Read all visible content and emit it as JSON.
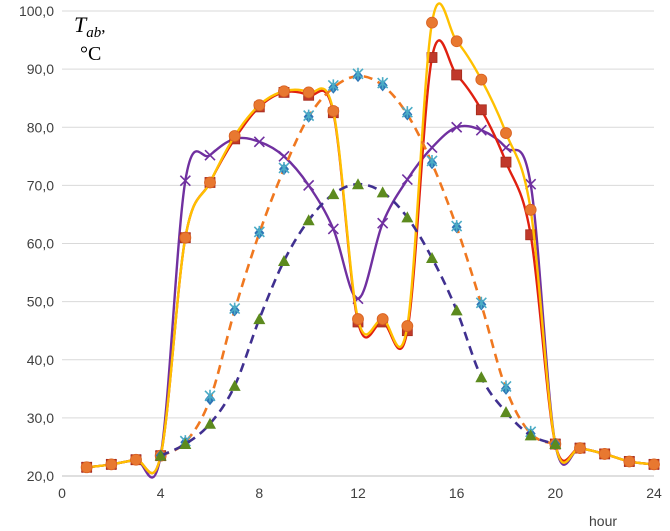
{
  "chart_data": {
    "type": "line",
    "ylabel_main": "T",
    "ylabel_sub": "ab",
    "ylabel_sep": ",",
    "ylabel_unit": "°C",
    "xlabel": "hour",
    "xlim": [
      0,
      24
    ],
    "ylim": [
      20,
      100
    ],
    "xticks": [
      "0",
      "4",
      "8",
      "12",
      "16",
      "20",
      "24"
    ],
    "yticks": [
      "20,0",
      "30,0",
      "40,0",
      "50,0",
      "60,0",
      "70,0",
      "80,0",
      "90,0",
      "100,0"
    ],
    "grid": "horizontal",
    "series": [
      {
        "color": "#7030a0",
        "dash": false,
        "marker": "x",
        "x": [
          1,
          2,
          3,
          4,
          5,
          6,
          7,
          8,
          9,
          10,
          11,
          12,
          13,
          14,
          15,
          16,
          17,
          18,
          19,
          20,
          21,
          22,
          23,
          24
        ],
        "y": [
          21.5,
          22.0,
          22.8,
          23.5,
          70.8,
          75.2,
          78.0,
          77.5,
          75.0,
          70.0,
          62.5,
          50.5,
          63.5,
          71.0,
          76.5,
          80.0,
          79.5,
          76.5,
          70.2,
          25.5,
          24.8,
          23.8,
          22.5,
          22.0
        ]
      },
      {
        "color": "#e02010",
        "dash": false,
        "marker": "square",
        "x": [
          1,
          2,
          3,
          4,
          5,
          6,
          7,
          8,
          9,
          10,
          11,
          12,
          13,
          14,
          15,
          16,
          17,
          18,
          19,
          20,
          21,
          22,
          23,
          24
        ],
        "y": [
          21.5,
          22.0,
          22.8,
          23.5,
          61.0,
          70.5,
          78.0,
          83.5,
          86.0,
          85.5,
          82.5,
          46.5,
          46.5,
          45.0,
          92.0,
          89.0,
          83.0,
          74.0,
          61.5,
          25.5,
          24.8,
          23.8,
          22.5,
          22.0
        ]
      },
      {
        "color": "#ffc000",
        "dash": false,
        "marker": "circle",
        "x": [
          1,
          2,
          3,
          4,
          5,
          6,
          7,
          8,
          9,
          10,
          11,
          12,
          13,
          14,
          15,
          16,
          17,
          18,
          19,
          20,
          21,
          22,
          23,
          24
        ],
        "y": [
          21.5,
          22.0,
          22.8,
          23.5,
          61.0,
          70.5,
          78.5,
          83.8,
          86.2,
          86.0,
          82.8,
          47.0,
          47.0,
          45.8,
          98.0,
          94.8,
          88.2,
          79.0,
          65.8,
          25.5,
          24.8,
          23.8,
          22.5,
          22.0
        ]
      },
      {
        "color": "#f07820",
        "dash": true,
        "marker": "diamond",
        "x": [
          4,
          5,
          6,
          7,
          8,
          9,
          10,
          11,
          12,
          13,
          14,
          15,
          16,
          17,
          18,
          19,
          20
        ],
        "y": [
          23.5,
          25.8,
          33.2,
          48.5,
          61.8,
          72.8,
          81.8,
          86.8,
          88.8,
          87.2,
          82.2,
          73.8,
          62.8,
          49.5,
          35.0,
          27.3,
          25.5
        ]
      },
      {
        "color": "#4bacc6",
        "dash": false,
        "marker": "asterisk",
        "x": [
          5,
          6,
          7,
          8,
          9,
          10,
          11,
          12,
          13,
          14,
          15,
          16,
          17,
          18,
          19
        ],
        "y": [
          26.0,
          33.8,
          48.8,
          62.0,
          73.0,
          82.0,
          87.2,
          89.2,
          87.6,
          82.6,
          74.2,
          63.0,
          49.8,
          35.4,
          27.6
        ]
      },
      {
        "color": "#403090",
        "dash": true,
        "marker": "triangle",
        "marker_color": "#5c8a1e",
        "x": [
          4,
          5,
          6,
          7,
          8,
          9,
          10,
          11,
          12,
          13,
          14,
          15,
          16,
          17,
          18,
          19,
          20
        ],
        "y": [
          23.5,
          25.5,
          29.0,
          35.5,
          47.0,
          57.0,
          64.0,
          68.5,
          70.2,
          68.8,
          64.5,
          57.5,
          48.5,
          37.0,
          31.0,
          27.0,
          25.5
        ]
      }
    ]
  }
}
